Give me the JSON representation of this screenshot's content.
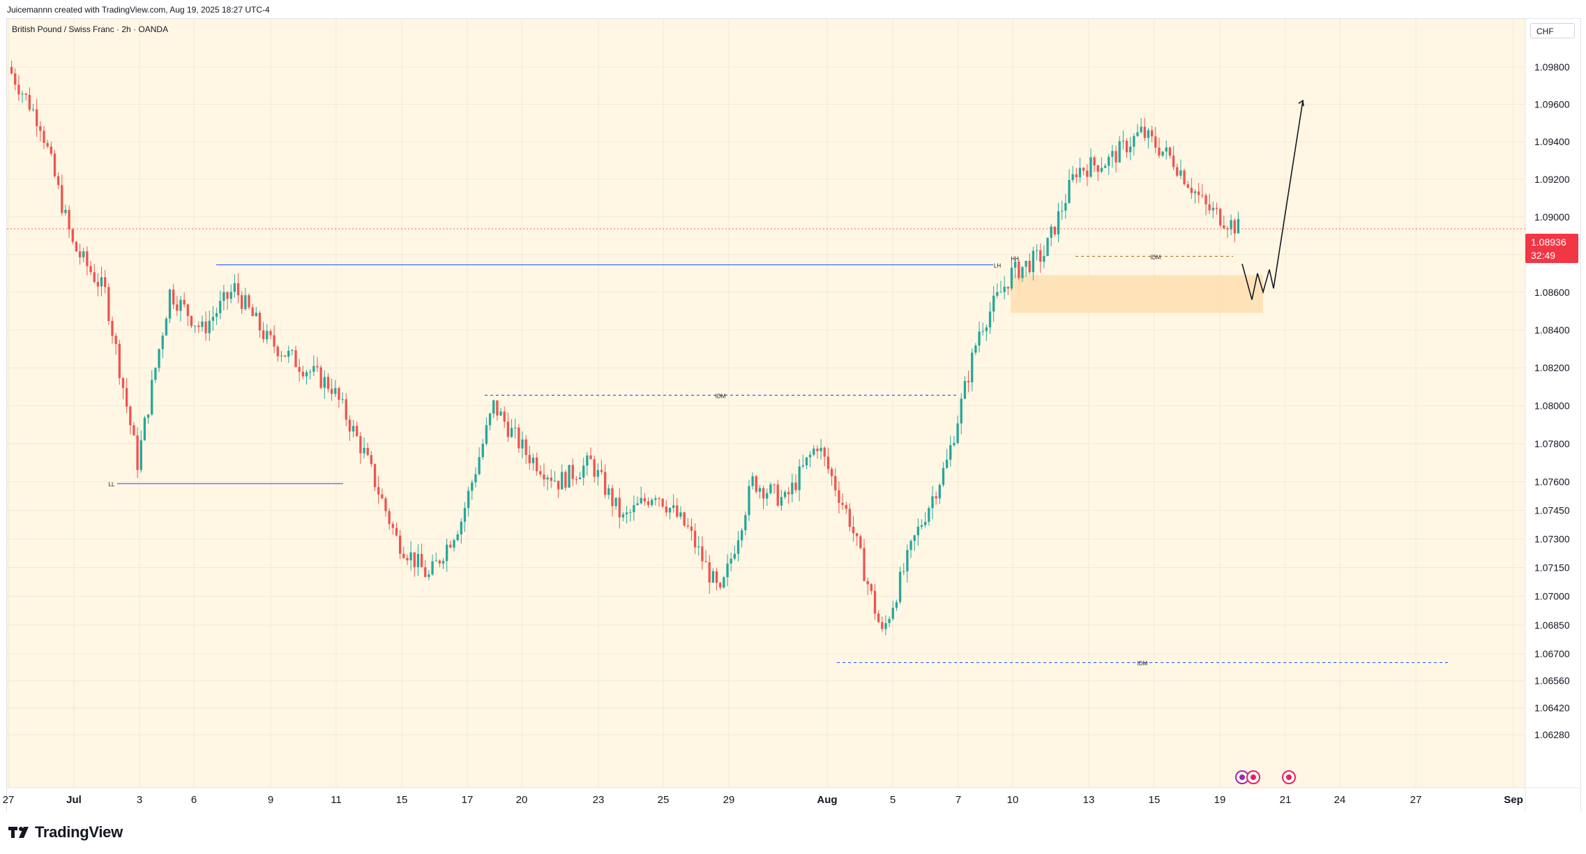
{
  "header": {
    "credit": "Juicemannn created with TradingView.com, Aug 19, 2025 18:27 UTC-4"
  },
  "symbol": {
    "title": "British Pound / Swiss Franc · 2h · OANDA",
    "currency": "CHF"
  },
  "price_label": {
    "value": "1.08936",
    "countdown": "32:49"
  },
  "footer": {
    "brand": "TradingView"
  },
  "colors": {
    "background": "#fff7e4",
    "bull": "#26a69a",
    "bear": "#ef5350",
    "level_line": "#2962ff",
    "zone": "#ffe0b2",
    "price_line": "#f23645"
  },
  "chart_data": {
    "type": "candlestick",
    "title": "British Pound / Swiss Franc · 2h · OANDA",
    "xlabel": "",
    "ylabel": "",
    "y_scale": "log",
    "ylim": [
      1.062,
      1.0995
    ],
    "x_ticks": [
      "27",
      "Jul",
      "3",
      "6",
      "9",
      "11",
      "15",
      "17",
      "20",
      "23",
      "25",
      "29",
      "Aug",
      "5",
      "7",
      "10",
      "13",
      "15",
      "19",
      "21",
      "24",
      "27",
      "Sep"
    ],
    "y_ticks": [
      "1.09800",
      "1.09600",
      "1.09400",
      "1.09200",
      "1.09000",
      "1.08800",
      "1.08600",
      "1.08400",
      "1.08200",
      "1.08000",
      "1.07800",
      "1.07600",
      "1.07450",
      "1.07300",
      "1.07150",
      "1.07000",
      "1.06850",
      "1.06700",
      "1.06560",
      "1.06420",
      "1.06280"
    ],
    "series": [
      {
        "x": [
          "Jun 27",
          "Jun 28",
          "Jun 30",
          "Jul 1",
          "Jul 2",
          "Jul 3",
          "Jul 4",
          "Jul 7",
          "Jul 8",
          "Jul 9",
          "Jul 10",
          "Jul 11",
          "Jul 14",
          "Jul 15",
          "Jul 16",
          "Jul 17",
          "Jul 18",
          "Jul 21",
          "Jul 22",
          "Jul 23",
          "Jul 24",
          "Jul 25",
          "Jul 28",
          "Jul 29",
          "Jul 30",
          "Jul 31",
          "Aug 1",
          "Aug 4",
          "Aug 5",
          "Aug 6",
          "Aug 7",
          "Aug 8",
          "Aug 11",
          "Aug 12",
          "Aug 13",
          "Aug 14",
          "Aug 15",
          "Aug 18",
          "Aug 19"
        ],
        "y": [
          1.098,
          1.095,
          1.0885,
          1.086,
          1.077,
          1.086,
          1.084,
          1.0862,
          1.0835,
          1.0822,
          1.081,
          1.0775,
          1.073,
          1.071,
          1.074,
          1.08,
          1.0775,
          1.076,
          1.077,
          1.074,
          1.0755,
          1.0735,
          1.07,
          1.076,
          1.075,
          1.078,
          1.074,
          1.068,
          1.073,
          1.077,
          1.084,
          1.087,
          1.088,
          1.0925,
          1.093,
          1.0945,
          1.093,
          1.0905,
          1.0894
        ]
      }
    ],
    "annotations": [
      {
        "type": "horizontal_level",
        "label": "LH",
        "price": 1.08745
      },
      {
        "type": "horizontal_level",
        "label": "LL",
        "price": 1.0759
      },
      {
        "type": "horizontal_level_dashed",
        "label": "IDM",
        "price": 1.08055
      },
      {
        "type": "horizontal_level_dashed",
        "label": "IDM",
        "price": 1.06655
      },
      {
        "type": "horizontal_level_dashed",
        "label": "IDM",
        "price": 1.0879
      },
      {
        "type": "marker",
        "label": "HH",
        "price": 1.0876
      },
      {
        "type": "demand_zone",
        "price_range": [
          1.0849,
          1.0869
        ]
      },
      {
        "type": "projection_path",
        "points": [
          1.0875,
          1.0856,
          1.087,
          1.086,
          1.0872,
          1.0862,
          1.0962
        ]
      }
    ],
    "current_price": 1.08936,
    "grid": true,
    "legend": "none"
  }
}
